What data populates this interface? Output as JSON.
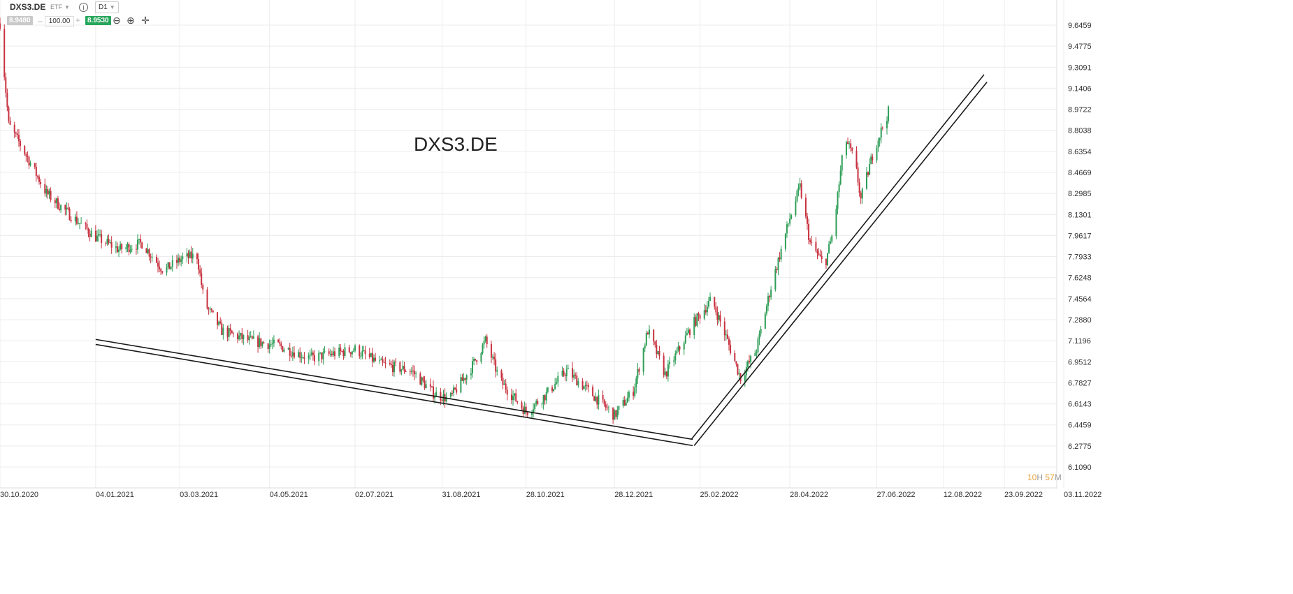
{
  "toolbar": {
    "symbol": "DXS3.DE",
    "asset_type": "ETF",
    "info_icon": "i",
    "timeframe": "D1",
    "bid": "8.9480",
    "quantity": "100.00",
    "ask": "8.9530",
    "minus": "–",
    "plus": "+",
    "tools": [
      {
        "name": "indicators-icon",
        "glyph": "⫶"
      },
      {
        "name": "zoom-out-icon",
        "glyph": "⊖"
      },
      {
        "name": "zoom-in-icon",
        "glyph": "⊕"
      },
      {
        "name": "crosshair-icon",
        "glyph": "✛"
      }
    ]
  },
  "countdown": {
    "hours": "10",
    "h_unit": "H",
    "minutes": "57",
    "m_unit": "M"
  },
  "colors": {
    "up": "#2e9e57",
    "down": "#c8313f",
    "grid": "#ececec",
    "trendline": "#1a1a1a"
  },
  "chart_data": {
    "type": "candlestick",
    "title": "DXS3.DE",
    "ylim": [
      6.109,
      9.75
    ],
    "y_ticks": [
      "9.6459",
      "9.4775",
      "9.3091",
      "9.1406",
      "8.9722",
      "8.8038",
      "8.6354",
      "8.4669",
      "8.2985",
      "8.1301",
      "7.9617",
      "7.7933",
      "7.6248",
      "7.4564",
      "7.2880",
      "7.1196",
      "6.9512",
      "6.7827",
      "6.6143",
      "6.4459",
      "6.2775",
      "6.1090"
    ],
    "x_ticks": [
      "30.10.2020",
      "04.01.2021",
      "03.03.2021",
      "04.05.2021",
      "02.07.2021",
      "31.08.2021",
      "28.10.2021",
      "28.12.2021",
      "25.02.2022",
      "28.04.2022",
      "27.06.2022",
      "12.08.2022",
      "23.09.2022",
      "03.11.2022"
    ],
    "x_range": [
      "2020-10-30",
      "2022-11-03"
    ],
    "price_path": [
      [
        "2020-10-30",
        9.66
      ],
      [
        "2020-11-05",
        8.85
      ],
      [
        "2020-11-15",
        8.65
      ],
      [
        "2020-12-01",
        8.3
      ],
      [
        "2020-12-15",
        8.15
      ],
      [
        "2021-01-04",
        7.95
      ],
      [
        "2021-01-20",
        7.85
      ],
      [
        "2021-02-05",
        7.9
      ],
      [
        "2021-02-20",
        7.68
      ],
      [
        "2021-03-05",
        7.78
      ],
      [
        "2021-03-15",
        7.8
      ],
      [
        "2021-03-20",
        7.42
      ],
      [
        "2021-04-01",
        7.2
      ],
      [
        "2021-04-20",
        7.12
      ],
      [
        "2021-05-10",
        7.08
      ],
      [
        "2021-06-01",
        6.98
      ],
      [
        "2021-07-02",
        7.05
      ],
      [
        "2021-07-20",
        6.93
      ],
      [
        "2021-08-10",
        6.88
      ],
      [
        "2021-08-25",
        6.7
      ],
      [
        "2021-09-05",
        6.65
      ],
      [
        "2021-09-20",
        6.9
      ],
      [
        "2021-09-30",
        7.12
      ],
      [
        "2021-10-10",
        6.8
      ],
      [
        "2021-10-28",
        6.55
      ],
      [
        "2021-11-10",
        6.68
      ],
      [
        "2021-11-25",
        6.88
      ],
      [
        "2021-12-10",
        6.72
      ],
      [
        "2021-12-28",
        6.52
      ],
      [
        "2022-01-10",
        6.72
      ],
      [
        "2022-01-20",
        7.2
      ],
      [
        "2022-02-01",
        6.85
      ],
      [
        "2022-02-20",
        7.25
      ],
      [
        "2022-03-05",
        7.45
      ],
      [
        "2022-03-15",
        7.15
      ],
      [
        "2022-03-25",
        6.82
      ],
      [
        "2022-04-05",
        7.05
      ],
      [
        "2022-04-15",
        7.55
      ],
      [
        "2022-04-28",
        8.1
      ],
      [
        "2022-05-05",
        8.35
      ],
      [
        "2022-05-12",
        7.9
      ],
      [
        "2022-05-22",
        7.72
      ],
      [
        "2022-05-28",
        8.0
      ],
      [
        "2022-06-05",
        8.75
      ],
      [
        "2022-06-12",
        8.55
      ],
      [
        "2022-06-16",
        8.25
      ],
      [
        "2022-06-25",
        8.65
      ],
      [
        "2022-07-05",
        8.95
      ]
    ],
    "trendlines": [
      {
        "x": [
          "2021-01-04",
          "2022-02-20"
        ],
        "y": [
          7.13,
          6.33
        ]
      },
      {
        "x": [
          "2021-01-04",
          "2022-02-20"
        ],
        "y": [
          7.09,
          6.28
        ]
      },
      {
        "x": [
          "2022-02-19",
          "2022-09-09"
        ],
        "y": [
          6.33,
          9.25
        ]
      },
      {
        "x": [
          "2022-02-21",
          "2022-09-11"
        ],
        "y": [
          6.28,
          9.19
        ]
      }
    ]
  }
}
